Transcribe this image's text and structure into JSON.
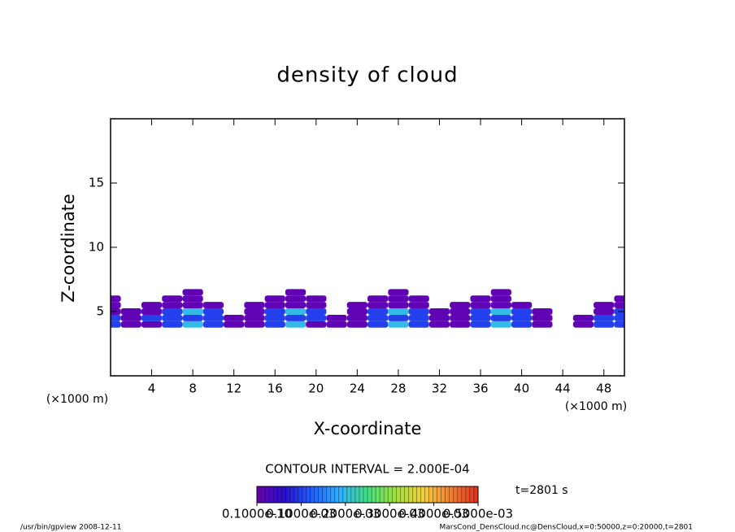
{
  "chart_data": {
    "type": "contour",
    "title": "density of cloud",
    "x_label": "X-coordinate",
    "y_label": "Z-coordinate",
    "x_unit": "(×1000 m)",
    "y_unit": "(×1000 m)",
    "xlim": [
      0,
      50
    ],
    "xticks": [
      4,
      8,
      12,
      16,
      20,
      24,
      28,
      32,
      36,
      40,
      44,
      48
    ],
    "ylim": [
      0,
      20
    ],
    "yticks": [
      5,
      10,
      15
    ],
    "x": [
      0,
      2,
      4,
      6,
      8,
      10,
      12,
      14,
      16,
      18,
      20,
      22,
      24,
      26,
      28,
      30,
      32,
      34,
      36,
      38,
      40,
      42,
      44,
      46,
      48,
      50
    ],
    "y": [
      4.0,
      4.5,
      5.0,
      5.5,
      6.0,
      6.5
    ],
    "values": [
      [
        0.0001,
        1e-05,
        1e-05,
        0.0001,
        0.0002,
        0.0001,
        1e-05,
        1e-05,
        0.0001,
        0.0002,
        1e-05,
        1e-05,
        1e-05,
        0.0001,
        0.0002,
        0.0001,
        1e-05,
        1e-05,
        0.0001,
        0.0002,
        0.0001,
        1e-05,
        0,
        1e-05,
        0.0001,
        0.0001
      ],
      [
        0.0001,
        1e-05,
        0.0001,
        0.0001,
        0.0001,
        0.0001,
        1e-05,
        1e-05,
        0.0001,
        0.0001,
        0.0001,
        1e-05,
        1e-05,
        0.0001,
        0.0001,
        0.0001,
        1e-05,
        1e-05,
        0.0001,
        0.0001,
        0.0001,
        1e-05,
        0,
        1e-05,
        0.0001,
        0.0001
      ],
      [
        1e-05,
        1e-05,
        1e-05,
        0.0001,
        0.0002,
        0.0001,
        0,
        1e-05,
        0.0001,
        0.0002,
        0.0001,
        0,
        1e-05,
        0.0001,
        0.0002,
        0.0001,
        1e-05,
        1e-05,
        0.0001,
        0.0002,
        0.0001,
        1e-05,
        0,
        0,
        1e-05,
        0.0001
      ],
      [
        1e-05,
        0,
        1e-05,
        1e-05,
        1e-05,
        1e-05,
        0,
        1e-05,
        1e-05,
        1e-05,
        1e-05,
        0,
        1e-05,
        1e-05,
        1e-05,
        1e-05,
        0,
        1e-05,
        1e-05,
        1e-05,
        1e-05,
        0,
        0,
        0,
        1e-05,
        1e-05
      ],
      [
        1e-05,
        0,
        0,
        1e-05,
        1e-05,
        0,
        0,
        0,
        1e-05,
        1e-05,
        1e-05,
        0,
        0,
        1e-05,
        1e-05,
        1e-05,
        0,
        0,
        1e-05,
        1e-05,
        0,
        0,
        0,
        0,
        0,
        1e-05
      ],
      [
        0,
        0,
        0,
        0,
        1e-05,
        0,
        0,
        0,
        0,
        1e-05,
        0,
        0,
        0,
        0,
        1e-05,
        0,
        0,
        0,
        0,
        1e-05,
        0,
        0,
        0,
        0,
        0,
        0
      ]
    ],
    "colormap": [
      "#6a00b0",
      "#2a10d0",
      "#2060ff",
      "#30b0ff",
      "#40e080",
      "#a0e040",
      "#f0d040",
      "#f08030",
      "#e03020"
    ],
    "clim": [
      1e-11,
      0.0005
    ],
    "cticks": [
      {
        "value": 1e-11,
        "label": "0.1000e-10"
      },
      {
        "value": 0.0001,
        "label": "0.1000e-03"
      },
      {
        "value": 0.0002,
        "label": "0.2000e-03"
      },
      {
        "value": 0.0003,
        "label": "0.3000e-03"
      },
      {
        "value": 0.0004,
        "label": "0.4000e-03"
      },
      {
        "value": 0.0005,
        "label": "0.5000e-03"
      }
    ],
    "contour_interval": "CONTOUR INTERVAL = 2.000E-04",
    "time_label": "t=2801 s",
    "footer_left": "/usr/bin/gpview   2008-12-11",
    "footer_right": "MarsCond_DensCloud.nc@DensCloud,x=0:50000,z=0:20000,t=2801"
  }
}
